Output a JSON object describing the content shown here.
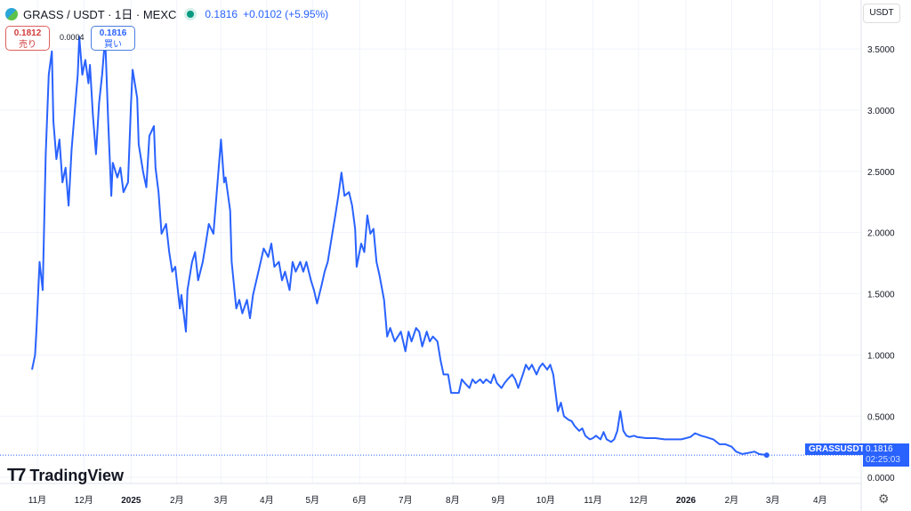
{
  "header": {
    "symbol": "GRASS / USDT · 1日 · MEXC",
    "price": "0.1816",
    "change": "+0.0102 (+5.95%)"
  },
  "trade": {
    "sell_price": "0.1812",
    "sell_label": "売り",
    "spread": "0.0004",
    "buy_price": "0.1816",
    "buy_label": "買い"
  },
  "currency": "USDT",
  "brand": "TradingView",
  "price_label": {
    "symbol": "GRASSUSDT",
    "price": "0.1816",
    "countdown": "02:25:03"
  },
  "colors": {
    "line": "#2962ff",
    "grid": "#f0f3fa"
  },
  "chart_data": {
    "type": "line",
    "title": "GRASS / USDT · 1日 · MEXC",
    "xlabel": "",
    "ylabel": "",
    "x_unit": "days since 2024-10-28",
    "ylim": [
      -0.05,
      3.9
    ],
    "xlim": [
      -21,
      544
    ],
    "grid": true,
    "last_value": 0.1816,
    "y_ticks": [
      0,
      0.5,
      1,
      1.5,
      2,
      2.5,
      3,
      3.5
    ],
    "y_tick_labels": [
      "0.0000",
      "0.5000",
      "1.0000",
      "1.5000",
      "2.0000",
      "2.5000",
      "3.0000",
      "3.5000"
    ],
    "x_ticks": [
      {
        "d": 3.5,
        "label": "11月"
      },
      {
        "d": 34,
        "label": "12月"
      },
      {
        "d": 65,
        "label": "2025",
        "bold": true
      },
      {
        "d": 95,
        "label": "2月"
      },
      {
        "d": 124,
        "label": "3月"
      },
      {
        "d": 154,
        "label": "4月"
      },
      {
        "d": 184,
        "label": "5月"
      },
      {
        "d": 215,
        "label": "6月"
      },
      {
        "d": 245,
        "label": "7月"
      },
      {
        "d": 276,
        "label": "8月"
      },
      {
        "d": 306,
        "label": "9月"
      },
      {
        "d": 337,
        "label": "10月"
      },
      {
        "d": 368,
        "label": "11月"
      },
      {
        "d": 398,
        "label": "12月"
      },
      {
        "d": 429,
        "label": "2026",
        "bold": true
      },
      {
        "d": 459,
        "label": "2月"
      },
      {
        "d": 486,
        "label": "3月"
      },
      {
        "d": 517,
        "label": "4月"
      }
    ],
    "series": [
      {
        "name": "GRASSUSDT",
        "points": [
          [
            0,
            0.88
          ],
          [
            2,
            1.0
          ],
          [
            3,
            1.22
          ],
          [
            5,
            1.76
          ],
          [
            7,
            1.53
          ],
          [
            9,
            2.64
          ],
          [
            11,
            3.29
          ],
          [
            13,
            3.48
          ],
          [
            14,
            2.91
          ],
          [
            16,
            2.6
          ],
          [
            18,
            2.76
          ],
          [
            20,
            2.41
          ],
          [
            22,
            2.53
          ],
          [
            24,
            2.22
          ],
          [
            26,
            2.68
          ],
          [
            28,
            2.99
          ],
          [
            30,
            3.29
          ],
          [
            31,
            3.6
          ],
          [
            33,
            3.29
          ],
          [
            35,
            3.41
          ],
          [
            37,
            3.22
          ],
          [
            38,
            3.37
          ],
          [
            40,
            2.95
          ],
          [
            42,
            2.64
          ],
          [
            44,
            3.06
          ],
          [
            46,
            3.29
          ],
          [
            48,
            3.6
          ],
          [
            50,
            2.91
          ],
          [
            52,
            2.3
          ],
          [
            53,
            2.57
          ],
          [
            56,
            2.45
          ],
          [
            58,
            2.53
          ],
          [
            60,
            2.33
          ],
          [
            63,
            2.41
          ],
          [
            65,
            3.06
          ],
          [
            66,
            3.33
          ],
          [
            69,
            3.1
          ],
          [
            70,
            2.72
          ],
          [
            73,
            2.49
          ],
          [
            75,
            2.37
          ],
          [
            77,
            2.79
          ],
          [
            80,
            2.87
          ],
          [
            81,
            2.53
          ],
          [
            83,
            2.33
          ],
          [
            85,
            1.99
          ],
          [
            88,
            2.07
          ],
          [
            90,
            1.84
          ],
          [
            92,
            1.68
          ],
          [
            94,
            1.72
          ],
          [
            97,
            1.38
          ],
          [
            98,
            1.49
          ],
          [
            101,
            1.19
          ],
          [
            102,
            1.53
          ],
          [
            105,
            1.76
          ],
          [
            107,
            1.84
          ],
          [
            109,
            1.61
          ],
          [
            112,
            1.76
          ],
          [
            114,
            1.91
          ],
          [
            116,
            2.07
          ],
          [
            119,
            1.99
          ],
          [
            121,
            2.3
          ],
          [
            124,
            2.76
          ],
          [
            126,
            2.41
          ],
          [
            127,
            2.45
          ],
          [
            130,
            2.18
          ],
          [
            131,
            1.76
          ],
          [
            134,
            1.38
          ],
          [
            136,
            1.45
          ],
          [
            138,
            1.34
          ],
          [
            141,
            1.45
          ],
          [
            143,
            1.3
          ],
          [
            145,
            1.49
          ],
          [
            148,
            1.65
          ],
          [
            150,
            1.76
          ],
          [
            152,
            1.87
          ],
          [
            155,
            1.8
          ],
          [
            157,
            1.91
          ],
          [
            159,
            1.72
          ],
          [
            162,
            1.76
          ],
          [
            164,
            1.61
          ],
          [
            166,
            1.68
          ],
          [
            169,
            1.53
          ],
          [
            171,
            1.76
          ],
          [
            173,
            1.68
          ],
          [
            176,
            1.76
          ],
          [
            178,
            1.68
          ],
          [
            180,
            1.76
          ],
          [
            183,
            1.61
          ],
          [
            185,
            1.53
          ],
          [
            187,
            1.42
          ],
          [
            190,
            1.57
          ],
          [
            192,
            1.68
          ],
          [
            194,
            1.76
          ],
          [
            197,
            1.99
          ],
          [
            199,
            2.14
          ],
          [
            201,
            2.3
          ],
          [
            203,
            2.49
          ],
          [
            205,
            2.3
          ],
          [
            208,
            2.33
          ],
          [
            210,
            2.22
          ],
          [
            212,
            2.03
          ],
          [
            213,
            1.72
          ],
          [
            216,
            1.91
          ],
          [
            218,
            1.84
          ],
          [
            220,
            2.14
          ],
          [
            222,
            1.99
          ],
          [
            224,
            2.03
          ],
          [
            226,
            1.76
          ],
          [
            228,
            1.65
          ],
          [
            231,
            1.45
          ],
          [
            233,
            1.15
          ],
          [
            235,
            1.22
          ],
          [
            238,
            1.11
          ],
          [
            240,
            1.15
          ],
          [
            242,
            1.19
          ],
          [
            245,
            1.03
          ],
          [
            247,
            1.19
          ],
          [
            249,
            1.11
          ],
          [
            252,
            1.22
          ],
          [
            254,
            1.19
          ],
          [
            256,
            1.07
          ],
          [
            259,
            1.19
          ],
          [
            261,
            1.11
          ],
          [
            263,
            1.15
          ],
          [
            266,
            1.11
          ],
          [
            268,
            0.96
          ],
          [
            270,
            0.84
          ],
          [
            273,
            0.84
          ],
          [
            275,
            0.69
          ],
          [
            277,
            0.69
          ],
          [
            280,
            0.69
          ],
          [
            282,
            0.8
          ],
          [
            284,
            0.77
          ],
          [
            287,
            0.73
          ],
          [
            289,
            0.8
          ],
          [
            291,
            0.77
          ],
          [
            294,
            0.8
          ],
          [
            296,
            0.77
          ],
          [
            298,
            0.8
          ],
          [
            301,
            0.77
          ],
          [
            303,
            0.84
          ],
          [
            305,
            0.77
          ],
          [
            308,
            0.73
          ],
          [
            310,
            0.77
          ],
          [
            312,
            0.8
          ],
          [
            315,
            0.84
          ],
          [
            317,
            0.8
          ],
          [
            319,
            0.73
          ],
          [
            322,
            0.84
          ],
          [
            324,
            0.92
          ],
          [
            326,
            0.88
          ],
          [
            328,
            0.92
          ],
          [
            331,
            0.84
          ],
          [
            333,
            0.9
          ],
          [
            335,
            0.93
          ],
          [
            338,
            0.88
          ],
          [
            340,
            0.92
          ],
          [
            342,
            0.84
          ],
          [
            345,
            0.54
          ],
          [
            347,
            0.61
          ],
          [
            349,
            0.5
          ],
          [
            352,
            0.47
          ],
          [
            354,
            0.46
          ],
          [
            356,
            0.42
          ],
          [
            359,
            0.38
          ],
          [
            361,
            0.4
          ],
          [
            363,
            0.34
          ],
          [
            366,
            0.31
          ],
          [
            368,
            0.32
          ],
          [
            370,
            0.34
          ],
          [
            373,
            0.31
          ],
          [
            375,
            0.37
          ],
          [
            377,
            0.31
          ],
          [
            380,
            0.29
          ],
          [
            382,
            0.31
          ],
          [
            384,
            0.38
          ],
          [
            386,
            0.54
          ],
          [
            388,
            0.38
          ],
          [
            390,
            0.34
          ],
          [
            392,
            0.33
          ],
          [
            395,
            0.34
          ],
          [
            397,
            0.33
          ],
          [
            403,
            0.32
          ],
          [
            409,
            0.32
          ],
          [
            415,
            0.31
          ],
          [
            420,
            0.31
          ],
          [
            426,
            0.31
          ],
          [
            432,
            0.33
          ],
          [
            435,
            0.36
          ],
          [
            439,
            0.34
          ],
          [
            442,
            0.33
          ],
          [
            447,
            0.31
          ],
          [
            451,
            0.27
          ],
          [
            455,
            0.27
          ],
          [
            459,
            0.25
          ],
          [
            462,
            0.21
          ],
          [
            466,
            0.19
          ],
          [
            470,
            0.2
          ],
          [
            474,
            0.21
          ],
          [
            477,
            0.19
          ],
          [
            482,
            0.1816
          ]
        ]
      }
    ]
  }
}
